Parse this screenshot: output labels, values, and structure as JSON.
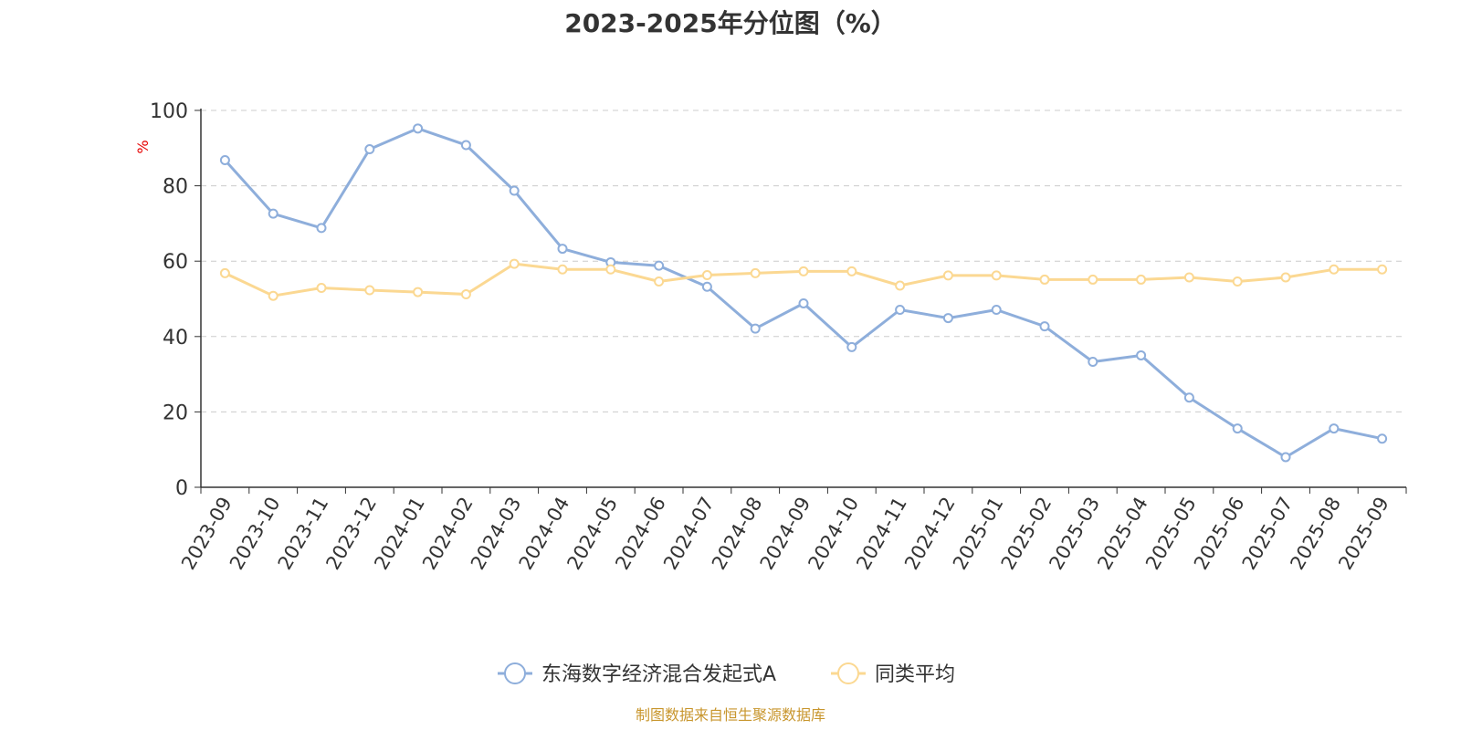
{
  "chart_data": {
    "type": "line",
    "title": "2023-2025年分位图（%）",
    "ylabel": "%",
    "ylim": [
      0,
      100
    ],
    "yticks": [
      0,
      20,
      40,
      60,
      80,
      100
    ],
    "grid": true,
    "legend_position": "bottom-center",
    "categories": [
      "2023-09",
      "2023-10",
      "2023-11",
      "2023-12",
      "2024-01",
      "2024-02",
      "2024-03",
      "2024-04",
      "2024-05",
      "2024-06",
      "2024-07",
      "2024-08",
      "2024-09",
      "2024-10",
      "2024-11",
      "2024-12",
      "2025-01",
      "2025-02",
      "2025-03",
      "2025-04",
      "2025-05",
      "2025-06",
      "2025-07",
      "2025-08",
      "2025-09"
    ],
    "series": [
      {
        "name": "东海数字经济混合发起式A",
        "color": "#8eaedb",
        "values": [
          86.8,
          72.6,
          68.8,
          89.7,
          95.2,
          90.8,
          78.7,
          63.3,
          59.7,
          58.8,
          53.2,
          42.1,
          48.8,
          37.2,
          47.1,
          44.9,
          47.1,
          42.7,
          33.3,
          35.0,
          23.8,
          15.6,
          8.0,
          15.6,
          12.9
        ]
      },
      {
        "name": "同类平均",
        "color": "#fbd892",
        "values": [
          56.8,
          50.8,
          52.9,
          52.3,
          51.8,
          51.2,
          59.3,
          57.8,
          57.8,
          54.6,
          56.3,
          56.8,
          57.3,
          57.3,
          53.5,
          56.2,
          56.2,
          55.1,
          55.1,
          55.1,
          55.7,
          54.6,
          55.7,
          57.8,
          57.8
        ]
      }
    ]
  },
  "source_note": "制图数据来自恒生聚源数据库"
}
